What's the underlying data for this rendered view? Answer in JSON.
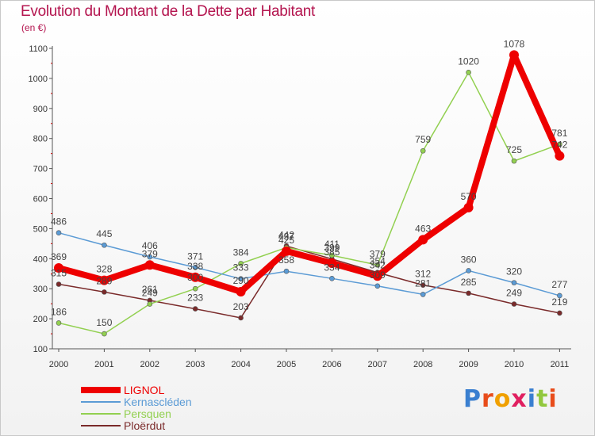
{
  "page": {
    "title": "Evolution du Montant de la Dette par Habitant",
    "subtitle": "(en €)",
    "logo": "Proxiti"
  },
  "colors": {
    "title": "#b4154f",
    "axis": "#555555",
    "grid": "#dddddd"
  },
  "chart_data": {
    "type": "line",
    "title": "Evolution du Montant de la Dette par Habitant",
    "subtitle": "(en €)",
    "xlabel": "",
    "ylabel": "",
    "x": [
      "2000",
      "2001",
      "2002",
      "2003",
      "2004",
      "2005",
      "2006",
      "2007",
      "2008",
      "2009",
      "2010",
      "2011"
    ],
    "ylim": [
      100,
      1100
    ],
    "yticks": [
      100,
      200,
      300,
      400,
      500,
      600,
      700,
      800,
      900,
      1000,
      1100
    ],
    "grid": false,
    "legend_position": "bottom-left",
    "series": [
      {
        "name": "LIGNOL",
        "color": "#ee0000",
        "values": [
          369,
          328,
          379,
          338,
          290,
          425,
          385,
          342,
          463,
          570,
          1078,
          742
        ],
        "labels": [
          "369",
          "328",
          "379",
          "338",
          "290",
          "425",
          "385",
          "342",
          "463",
          "570",
          "1078",
          "742"
        ]
      },
      {
        "name": "Kernascléden",
        "color": "#5b9bd5",
        "values": [
          486,
          445,
          406,
          371,
          333,
          358,
          334,
          309,
          281,
          360,
          320,
          277
        ],
        "labels": [
          "486",
          "445",
          "406",
          "371",
          "333",
          "358",
          "334",
          "309",
          "281",
          "360",
          "320",
          "277"
        ]
      },
      {
        "name": "Persquen",
        "color": "#92d050",
        "values": [
          186,
          150,
          249,
          300,
          384,
          437,
          411,
          379,
          759,
          1020,
          725,
          781
        ],
        "labels": [
          "186",
          "150",
          "249",
          "300",
          "384",
          "437",
          "411",
          "379",
          "759",
          "1020",
          "725",
          "781"
        ]
      },
      {
        "name": "Ploërdut",
        "color": "#7a2a2a",
        "values": [
          315,
          289,
          261,
          233,
          203,
          442,
          399,
          354,
          312,
          285,
          249,
          219
        ],
        "labels": [
          "315",
          "289",
          "261",
          "233",
          "203",
          "442",
          "399",
          "354",
          "312",
          "285",
          "249",
          "219"
        ]
      }
    ]
  }
}
